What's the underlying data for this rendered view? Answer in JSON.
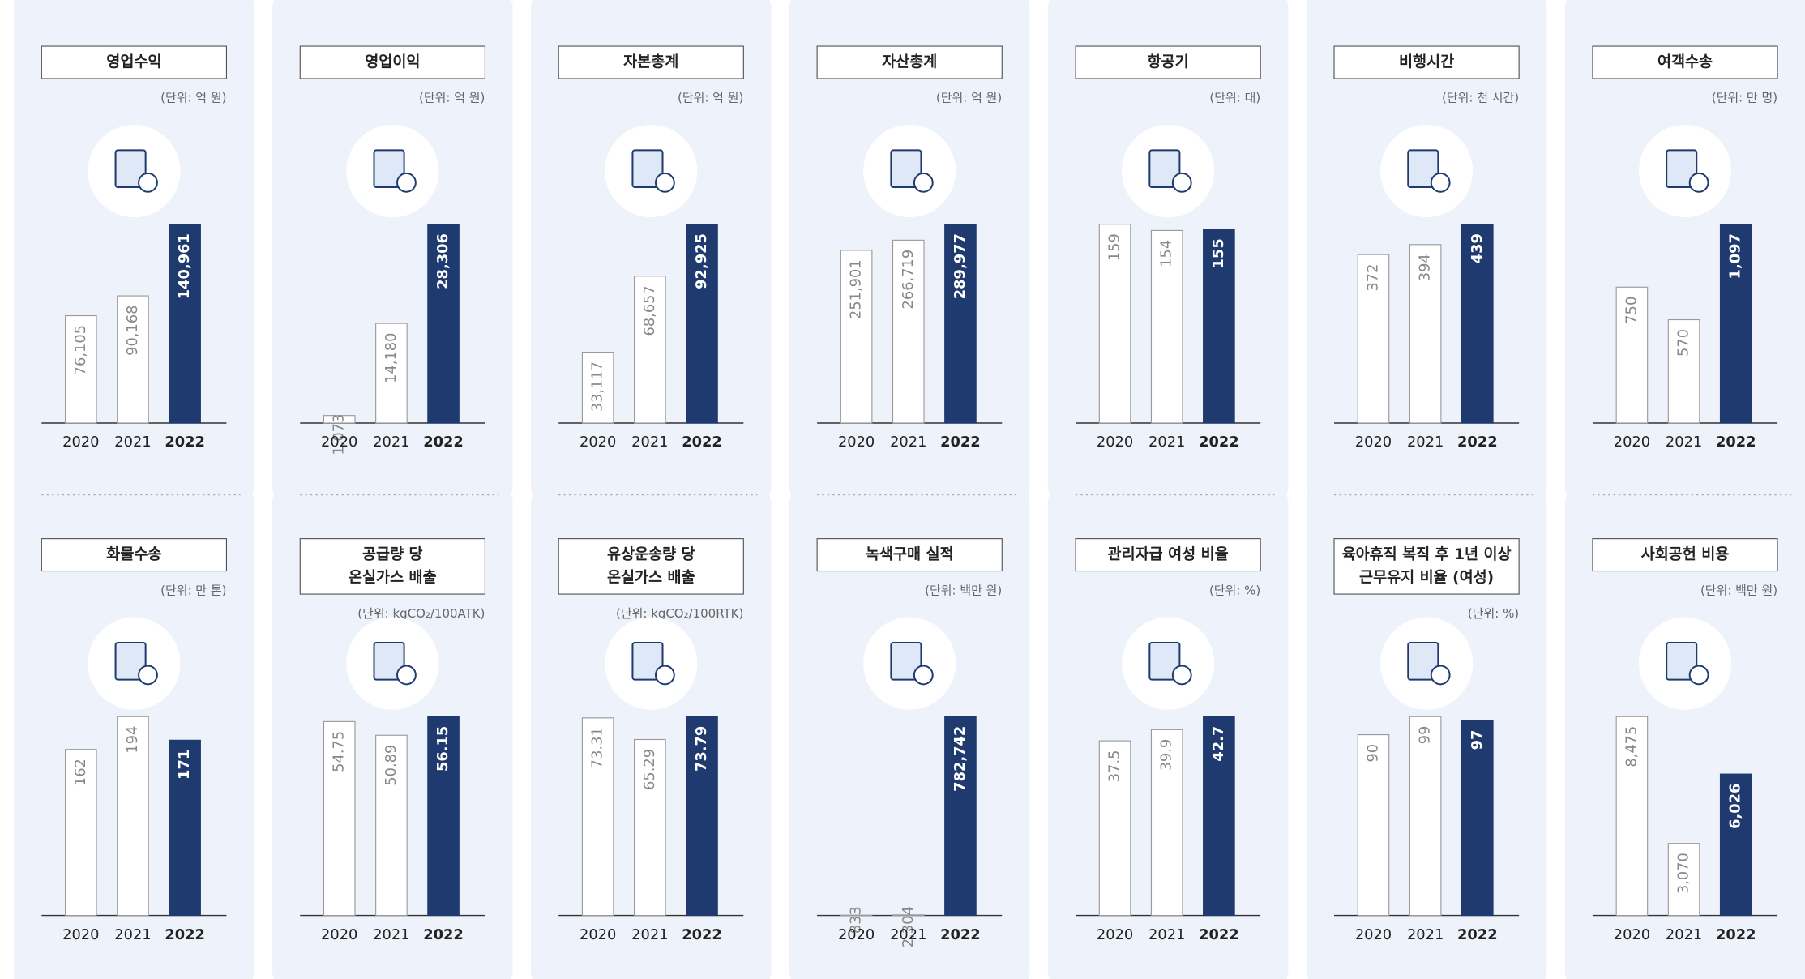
{
  "chart_data": [
    {
      "type": "bar",
      "title": [
        "영업수익"
      ],
      "unit": "(단위: 억 원)",
      "categories": [
        "2020",
        "2021",
        "2022"
      ],
      "values": [
        76105,
        90168,
        140961
      ],
      "value_labels": [
        "76,105",
        "90,168",
        "140,961"
      ],
      "colors": [
        "#ffffff",
        "#ffffff",
        "#1f3a6e"
      ]
    },
    {
      "type": "bar",
      "title": [
        "영업이익"
      ],
      "unit": "(단위: 억 원)",
      "categories": [
        "2020",
        "2021",
        "2022"
      ],
      "values": [
        1073,
        14180,
        28306
      ],
      "value_labels": [
        "1,073",
        "14,180",
        "28,306"
      ],
      "colors": [
        "#ffffff",
        "#ffffff",
        "#1f3a6e"
      ]
    },
    {
      "type": "bar",
      "title": [
        "자본총계"
      ],
      "unit": "(단위: 억 원)",
      "categories": [
        "2020",
        "2021",
        "2022"
      ],
      "values": [
        33117,
        68657,
        92925
      ],
      "value_labels": [
        "33,117",
        "68,657",
        "92,925"
      ],
      "colors": [
        "#ffffff",
        "#ffffff",
        "#1f3a6e"
      ]
    },
    {
      "type": "bar",
      "title": [
        "자산총계"
      ],
      "unit": "(단위: 억 원)",
      "categories": [
        "2020",
        "2021",
        "2022"
      ],
      "values": [
        251901,
        266719,
        289977
      ],
      "value_labels": [
        "251,901",
        "266,719",
        "289,977"
      ],
      "colors": [
        "#ffffff",
        "#ffffff",
        "#1f3a6e"
      ]
    },
    {
      "type": "bar",
      "title": [
        "항공기"
      ],
      "unit": "(단위: 대)",
      "categories": [
        "2020",
        "2021",
        "2022"
      ],
      "values": [
        159,
        154,
        155
      ],
      "colors": [
        "#ffffff",
        "#ffffff",
        "#1f3a6e"
      ]
    },
    {
      "type": "bar",
      "title": [
        "비행시간"
      ],
      "unit": "(단위: 천 시간)",
      "categories": [
        "2020",
        "2021",
        "2022"
      ],
      "values": [
        372,
        394,
        439
      ],
      "colors": [
        "#ffffff",
        "#ffffff",
        "#1f3a6e"
      ]
    },
    {
      "type": "bar",
      "title": [
        "여객수송"
      ],
      "unit": "(단위: 만 명)",
      "categories": [
        "2020",
        "2021",
        "2022"
      ],
      "values": [
        750,
        570,
        1097
      ],
      "value_labels": [
        "750",
        "570",
        "1,097"
      ],
      "colors": [
        "#ffffff",
        "#ffffff",
        "#1f3a6e"
      ]
    },
    {
      "type": "bar",
      "title": [
        "화물수송"
      ],
      "unit": "(단위: 만 톤)",
      "categories": [
        "2020",
        "2021",
        "2022"
      ],
      "values": [
        162,
        194,
        171
      ],
      "colors": [
        "#ffffff",
        "#ffffff",
        "#1f3a6e"
      ]
    },
    {
      "type": "bar",
      "title": [
        "공급량 당",
        "온실가스 배출"
      ],
      "unit": "(단위: kgCO₂/100ATK)",
      "categories": [
        "2020",
        "2021",
        "2022"
      ],
      "values": [
        54.75,
        50.89,
        56.15
      ],
      "colors": [
        "#ffffff",
        "#ffffff",
        "#1f3a6e"
      ]
    },
    {
      "type": "bar",
      "title": [
        "유상운송량 당",
        "온실가스 배출"
      ],
      "unit": "(단위: kgCO₂/100RTK)",
      "categories": [
        "2020",
        "2021",
        "2022"
      ],
      "values": [
        73.31,
        65.29,
        73.79
      ],
      "colors": [
        "#ffffff",
        "#ffffff",
        "#1f3a6e"
      ]
    },
    {
      "type": "bar",
      "title": [
        "녹색구매 실적"
      ],
      "unit": "(단위: 백만 원)",
      "categories": [
        "2020",
        "2021",
        "2022"
      ],
      "values": [
        833,
        2304,
        782742
      ],
      "value_labels": [
        "833",
        "2,304",
        "782,742"
      ],
      "colors": [
        "#ffffff",
        "#ffffff",
        "#1f3a6e"
      ]
    },
    {
      "type": "bar",
      "title": [
        "관리자급 여성 비율"
      ],
      "unit": "(단위: %)",
      "categories": [
        "2020",
        "2021",
        "2022"
      ],
      "values": [
        37.5,
        39.9,
        42.7
      ],
      "colors": [
        "#ffffff",
        "#ffffff",
        "#1f3a6e"
      ]
    },
    {
      "type": "bar",
      "title": [
        "육아휴직 복직 후 1년 이상",
        "근무유지 비율 (여성)"
      ],
      "unit": "(단위: %)",
      "categories": [
        "2020",
        "2021",
        "2022"
      ],
      "values": [
        90,
        99,
        97
      ],
      "colors": [
        "#ffffff",
        "#ffffff",
        "#1f3a6e"
      ]
    },
    {
      "type": "bar",
      "title": [
        "사회공헌 비용"
      ],
      "unit": "(단위: 백만 원)",
      "categories": [
        "2020",
        "2021",
        "2022"
      ],
      "values": [
        8475,
        3070,
        6026
      ],
      "value_labels": [
        "8,475",
        "3,070",
        "6,026"
      ],
      "colors": [
        "#ffffff",
        "#ffffff",
        "#1f3a6e"
      ]
    }
  ]
}
